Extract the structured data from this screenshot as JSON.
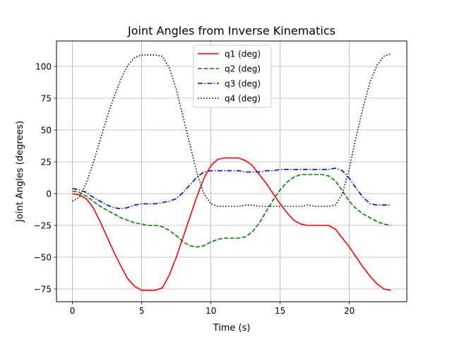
{
  "chart_data": {
    "type": "line",
    "title": "Joint Angles from Inverse Kinematics",
    "xlabel": "Time (s)",
    "ylabel": "Joint Angles (degrees)",
    "xlim": [
      -1.15,
      24.15
    ],
    "ylim": [
      -85,
      120
    ],
    "xticks": [
      0,
      5,
      10,
      15,
      20
    ],
    "yticks": [
      -75,
      -50,
      -25,
      0,
      25,
      50,
      75,
      100
    ],
    "ytick_labels": [
      "−75",
      "−50",
      "−25",
      "0",
      "25",
      "50",
      "75",
      "100"
    ],
    "grid": true,
    "legend_position": "top-center",
    "series": [
      {
        "name": "q1 (deg)",
        "color": "#ff0000",
        "dash": "solid",
        "x": [
          0,
          0.5,
          1,
          1.5,
          2,
          2.5,
          3,
          3.5,
          4,
          4.5,
          5,
          5.5,
          6,
          6.5,
          7,
          7.5,
          8,
          8.5,
          9,
          9.5,
          10,
          10.5,
          11,
          11.5,
          12,
          12.5,
          13,
          13.5,
          14,
          14.5,
          15,
          15.5,
          16,
          16.5,
          17,
          17.5,
          18,
          18.5,
          19,
          19.5,
          20,
          20.5,
          21,
          21.5,
          22,
          22.5,
          23
        ],
        "y": [
          0,
          -1,
          -4,
          -11,
          -22,
          -34,
          -46,
          -57,
          -67,
          -73,
          -76,
          -76,
          -76,
          -74,
          -64,
          -50,
          -34,
          -18,
          -2,
          12,
          22,
          27,
          28,
          28,
          28,
          26,
          22,
          15,
          8,
          0,
          -8,
          -15,
          -21,
          -24,
          -25,
          -25,
          -25,
          -25,
          -28,
          -35,
          -42,
          -50,
          -58,
          -65,
          -71,
          -75,
          -76
        ]
      },
      {
        "name": "q2 (deg)",
        "color": "#008000",
        "dash": "dashed",
        "x": [
          0,
          0.5,
          1,
          1.5,
          2,
          2.5,
          3,
          3.5,
          4,
          4.5,
          5,
          5.5,
          6,
          6.5,
          7,
          7.5,
          8,
          8.5,
          9,
          9.5,
          10,
          10.5,
          11,
          11.5,
          12,
          12.5,
          13,
          13.5,
          14,
          14.5,
          15,
          15.5,
          16,
          16.5,
          17,
          17.5,
          18,
          18.5,
          19,
          19.5,
          20,
          20.5,
          21,
          21.5,
          22,
          22.5,
          23
        ],
        "y": [
          2,
          1,
          -2,
          -6,
          -10,
          -13,
          -16,
          -19,
          -21,
          -23,
          -24,
          -25,
          -25,
          -26,
          -29,
          -33,
          -38,
          -41,
          -42,
          -41,
          -38,
          -36,
          -35,
          -35,
          -35,
          -34,
          -30,
          -23,
          -14,
          -5,
          3,
          9,
          13,
          15,
          15,
          15,
          15,
          14,
          10,
          2,
          -6,
          -12,
          -16,
          -19,
          -22,
          -24,
          -25
        ]
      },
      {
        "name": "q3 (deg)",
        "color": "#0000ff",
        "dash": "dashdot",
        "x": [
          0,
          0.5,
          1,
          1.5,
          2,
          2.5,
          3,
          3.5,
          4,
          4.5,
          5,
          5.5,
          6,
          6.5,
          7,
          7.5,
          8,
          8.5,
          9,
          9.5,
          10,
          10.5,
          11,
          11.5,
          12,
          12.5,
          13,
          13.5,
          14,
          14.5,
          15,
          15.5,
          16,
          16.5,
          17,
          17.5,
          18,
          18.5,
          19,
          19.5,
          20,
          20.5,
          21,
          21.5,
          22,
          22.5,
          23
        ],
        "y": [
          4,
          3,
          1,
          -3,
          -6,
          -9,
          -11,
          -12,
          -11,
          -9,
          -8,
          -8,
          -8,
          -7,
          -6,
          -4,
          1,
          7,
          13,
          17,
          18,
          18,
          18,
          18,
          18,
          17,
          17,
          17,
          18,
          18,
          19,
          19,
          19,
          19,
          19,
          19,
          19,
          19,
          20,
          18,
          12,
          4,
          -3,
          -8,
          -9,
          -9,
          -9
        ]
      },
      {
        "name": "q4 (deg)",
        "color": "#000000",
        "dash": "dotted",
        "x": [
          0,
          0.5,
          1,
          1.5,
          2,
          2.5,
          3,
          3.5,
          4,
          4.5,
          5,
          5.5,
          6,
          6.5,
          7,
          7.5,
          8,
          8.5,
          9,
          9.5,
          10,
          10.5,
          11,
          11.5,
          12,
          12.5,
          13,
          13.5,
          14,
          14.5,
          15,
          15.5,
          16,
          16.5,
          17,
          17.5,
          18,
          18.5,
          19,
          19.5,
          20,
          20.5,
          21,
          21.5,
          22,
          22.5,
          23
        ],
        "y": [
          -6,
          -3,
          8,
          24,
          42,
          60,
          76,
          90,
          101,
          107,
          109,
          109,
          109,
          108,
          99,
          82,
          60,
          38,
          16,
          0,
          -8,
          -10,
          -10,
          -10,
          -10,
          -9,
          -9,
          -10,
          -10,
          -10,
          -10,
          -10,
          -10,
          -10,
          -9,
          -10,
          -10,
          -10,
          -9,
          0,
          20,
          45,
          68,
          88,
          101,
          108,
          110
        ]
      }
    ]
  }
}
